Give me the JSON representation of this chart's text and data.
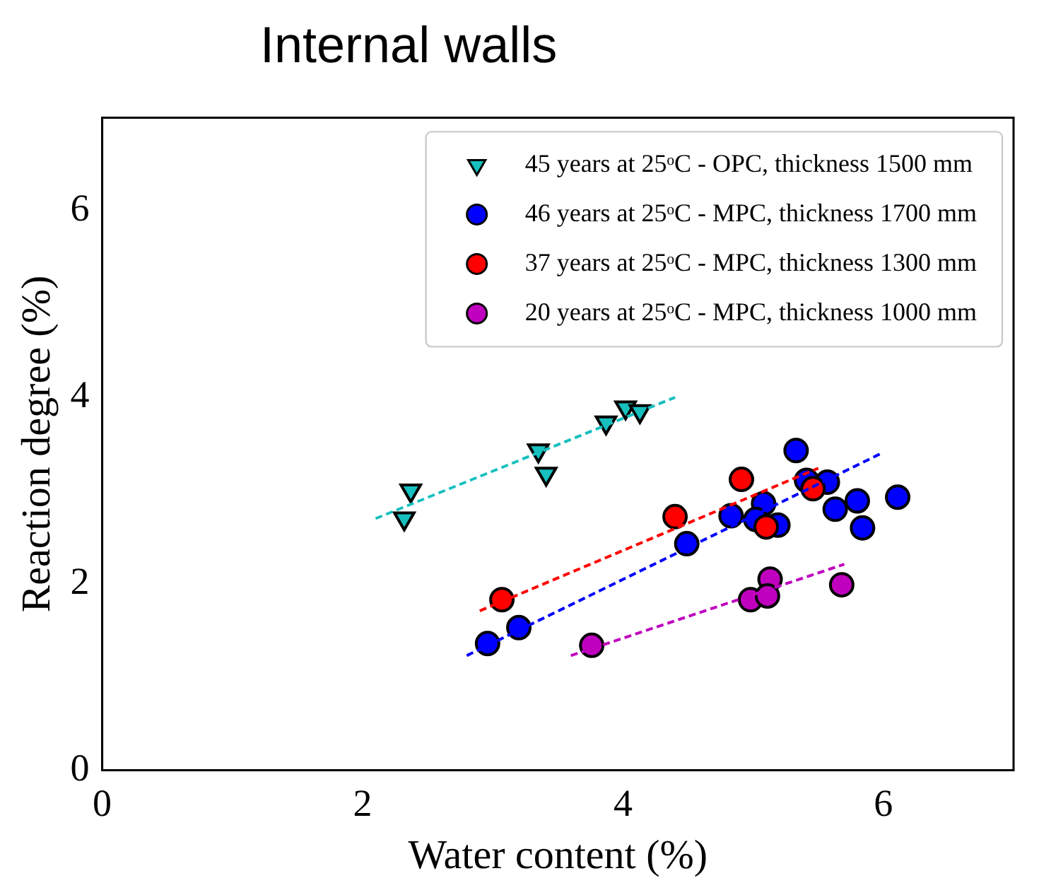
{
  "chart_data": {
    "type": "scatter",
    "title": "Internal walls",
    "xlabel": "Water content (%)",
    "ylabel": "Reaction degree (%)",
    "xlim": [
      0,
      7
    ],
    "ylim": [
      0,
      7
    ],
    "xticks": [
      0,
      2,
      4,
      6
    ],
    "yticks": [
      0,
      2,
      4,
      6
    ],
    "grid": false,
    "legend": "top right",
    "series": [
      {
        "name": "45 years at 25ᵒC - OPC, thickness 1500 mm",
        "color": "#17bfbf",
        "marker": "triangle",
        "x": [
          2.32,
          2.37,
          3.35,
          3.41,
          3.87,
          4.02,
          4.13
        ],
        "values": [
          2.7,
          3.0,
          3.43,
          3.18,
          3.73,
          3.89,
          3.85
        ]
      },
      {
        "name": "46 years at 25ᵒC - MPC, thickness 1700 mm",
        "color": "#0000ff",
        "marker": "circle",
        "x": [
          5.33,
          5.41,
          5.57,
          5.08,
          4.83,
          5.02,
          5.19,
          5.63,
          5.8,
          6.11,
          5.84,
          4.49,
          3.2,
          2.96
        ],
        "values": [
          3.43,
          3.11,
          3.09,
          2.86,
          2.73,
          2.69,
          2.63,
          2.8,
          2.89,
          2.93,
          2.6,
          2.43,
          1.53,
          1.36
        ]
      },
      {
        "name": "37 years at 25ᵒC - MPC, thickness 1300 mm",
        "color": "#ff0000",
        "marker": "circle",
        "x": [
          4.91,
          4.4,
          5.1,
          5.46,
          3.07
        ],
        "values": [
          3.12,
          2.72,
          2.61,
          3.02,
          1.83
        ]
      },
      {
        "name": "20 years at 25ᵒC - MPC, thickness 1000 mm",
        "color": "#bf00bf",
        "marker": "circle",
        "x": [
          3.76,
          5.13,
          4.98,
          5.11,
          5.68
        ],
        "values": [
          1.34,
          2.05,
          1.83,
          1.87,
          1.99
        ]
      },
      {
        "type": "line",
        "color": "#17bfbf",
        "line_style": "dashed",
        "marker": "none",
        "x": [
          2.1,
          4.4
        ],
        "values": [
          2.7,
          4.0
        ]
      },
      {
        "type": "line",
        "color": "#0000ff",
        "line_style": "dashed",
        "marker": "none",
        "x": [
          2.8,
          6.0
        ],
        "values": [
          1.23,
          3.41
        ]
      },
      {
        "type": "line",
        "color": "#ff0000",
        "line_style": "dashed",
        "marker": "none",
        "x": [
          2.9,
          5.5
        ],
        "values": [
          1.71,
          3.24
        ]
      },
      {
        "type": "line",
        "color": "#bf00bf",
        "line_style": "dashed",
        "marker": "none",
        "x": [
          3.6,
          5.7
        ],
        "values": [
          1.23,
          2.21
        ]
      }
    ]
  }
}
